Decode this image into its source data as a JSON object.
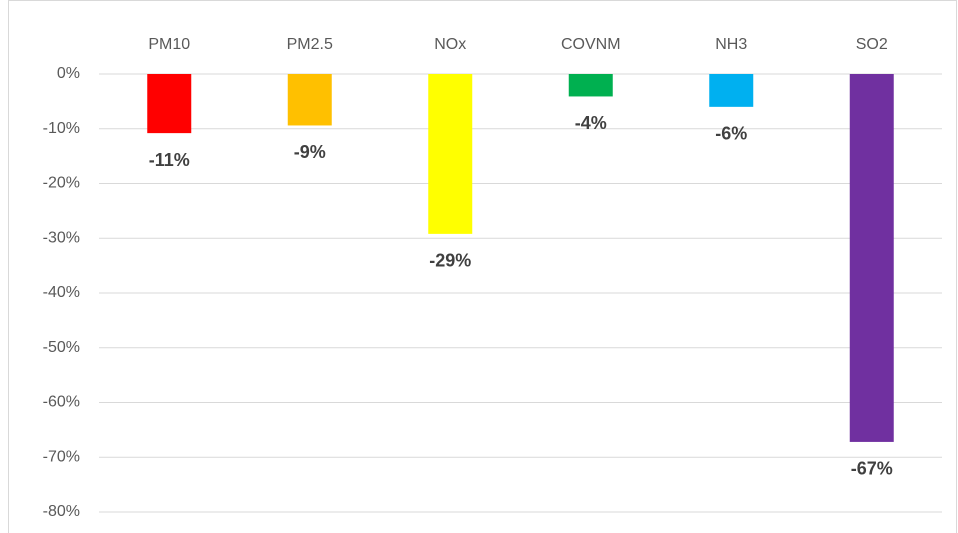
{
  "chart_data": {
    "type": "bar",
    "categories": [
      "PM10",
      "PM2.5",
      "NOx",
      "COVNM",
      "NH3",
      "SO2"
    ],
    "values": [
      -10.8,
      -9.4,
      -29.2,
      -4.1,
      -6,
      -67.2
    ],
    "value_labels": [
      "-11%",
      "-9%",
      "-29%",
      "-4%",
      "-6%",
      "-67%"
    ],
    "colors": [
      "#ff0000",
      "#ffc000",
      "#ffff00",
      "#00b050",
      "#00b0f0",
      "#7030a0"
    ],
    "ylim": [
      -80,
      0
    ],
    "yticks": [
      {
        "value": 0,
        "label": "0%"
      },
      {
        "value": -10,
        "label": "-10%"
      },
      {
        "value": -20,
        "label": "-20%"
      },
      {
        "value": -30,
        "label": "-30%"
      },
      {
        "value": -40,
        "label": "-40%"
      },
      {
        "value": -50,
        "label": "-50%"
      },
      {
        "value": -60,
        "label": "-60%"
      },
      {
        "value": -70,
        "label": "-70%"
      },
      {
        "value": -80,
        "label": "-80%"
      }
    ],
    "grid": true
  }
}
